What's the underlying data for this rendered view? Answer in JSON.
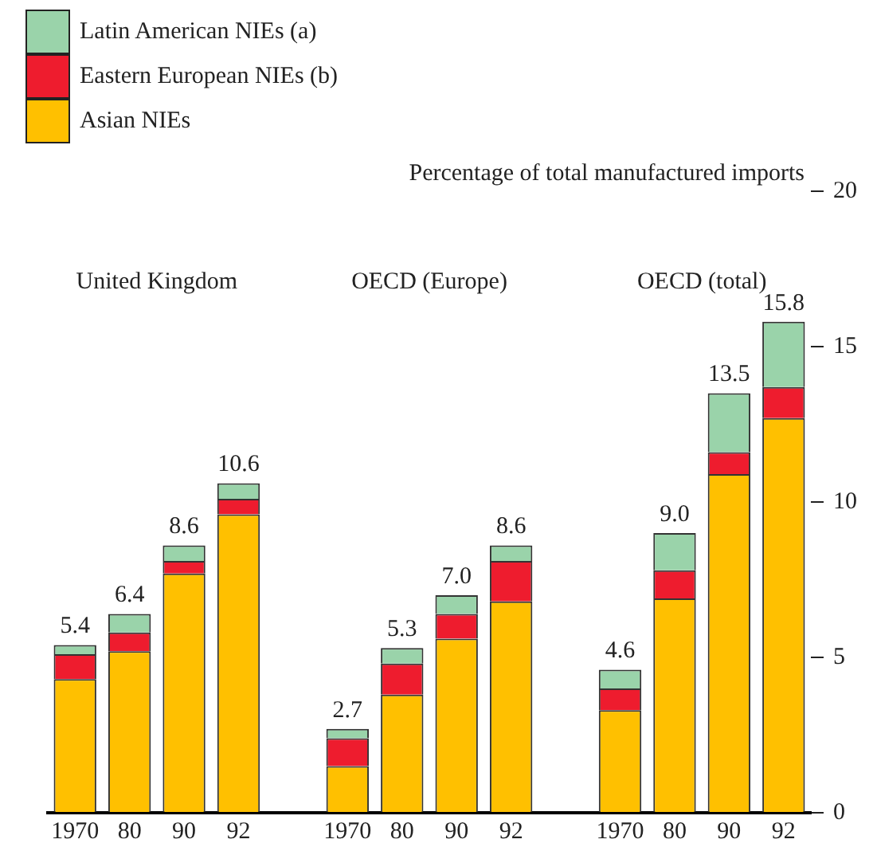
{
  "chart_data": {
    "type": "bar",
    "stacked": true,
    "ylabel": "Percentage of total manufactured imports",
    "categories": [
      "1970",
      "80",
      "90",
      "92",
      null,
      "1970",
      "80",
      "90",
      "92",
      null,
      "1970",
      "80",
      "90",
      "92"
    ],
    "series": [
      {
        "name": "Asian NIEs",
        "color": "#ffc000",
        "values": [
          4.3,
          5.2,
          7.7,
          9.6,
          null,
          1.5,
          3.8,
          5.6,
          6.8,
          null,
          3.3,
          6.9,
          10.9,
          12.7
        ]
      },
      {
        "name": "Eastern European NIEs (b)",
        "color": "#ee1c2e",
        "values": [
          0.8,
          0.6,
          0.4,
          0.5,
          null,
          0.9,
          1.0,
          0.8,
          1.3,
          null,
          0.7,
          0.9,
          0.7,
          1.0
        ]
      },
      {
        "name": "Latin American NIEs (a)",
        "color": "#9ad3aa",
        "values": [
          0.3,
          0.6,
          0.5,
          0.5,
          null,
          0.3,
          0.5,
          0.6,
          0.5,
          null,
          0.6,
          1.2,
          1.9,
          2.1
        ]
      }
    ],
    "totals": [
      "5.4",
      "6.4",
      "8.6",
      "10.6",
      null,
      "2.7",
      "5.3",
      "7.0",
      "8.6",
      null,
      "4.6",
      "9.0",
      "13.5",
      "15.8"
    ],
    "annotations": [
      "United Kingdom",
      "OECD (Europe)",
      "OECD (total)"
    ],
    "ylim": [
      0,
      20
    ],
    "yticks": [
      0,
      5,
      10,
      15,
      20
    ],
    "grid": false,
    "legend": "top left"
  }
}
